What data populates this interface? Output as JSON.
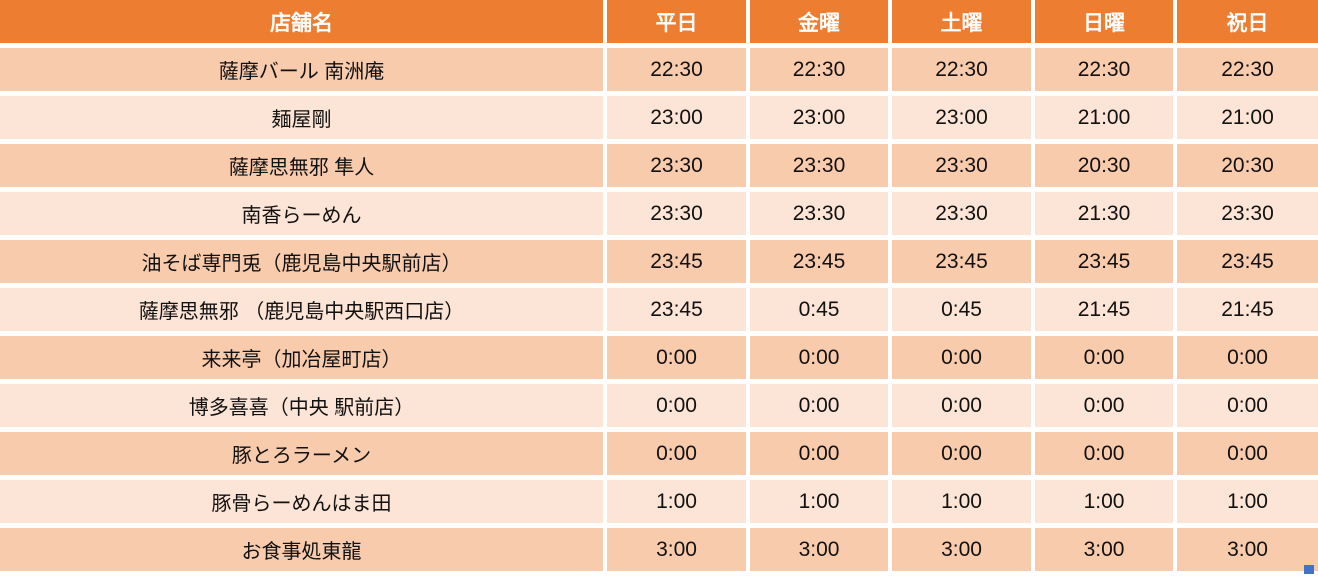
{
  "chart_data": {
    "type": "table",
    "title": "",
    "columns": [
      "店舗名",
      "平日",
      "金曜",
      "土曜",
      "日曜",
      "祝日"
    ],
    "rows": [
      {
        "name": "薩摩バール 南洲庵",
        "times": [
          "22:30",
          "22:30",
          "22:30",
          "22:30",
          "22:30"
        ]
      },
      {
        "name": "麺屋剛",
        "times": [
          "23:00",
          "23:00",
          "23:00",
          "21:00",
          "21:00"
        ]
      },
      {
        "name": "薩摩思無邪 隼人",
        "times": [
          "23:30",
          "23:30",
          "23:30",
          "20:30",
          "20:30"
        ]
      },
      {
        "name": "南香らーめん",
        "times": [
          "23:30",
          "23:30",
          "23:30",
          "21:30",
          "23:30"
        ]
      },
      {
        "name": "油そば専門兎（鹿児島中央駅前店）",
        "times": [
          "23:45",
          "23:45",
          "23:45",
          "23:45",
          "23:45"
        ]
      },
      {
        "name": "薩摩思無邪 （鹿児島中央駅西口店）",
        "times": [
          "23:45",
          "0:45",
          "0:45",
          "21:45",
          "21:45"
        ]
      },
      {
        "name": "来来亭（加冶屋町店）",
        "times": [
          "0:00",
          "0:00",
          "0:00",
          "0:00",
          "0:00"
        ]
      },
      {
        "name": "博多喜喜（中央 駅前店）",
        "times": [
          "0:00",
          "0:00",
          "0:00",
          "0:00",
          "0:00"
        ]
      },
      {
        "name": "豚とろラーメン",
        "times": [
          "0:00",
          "0:00",
          "0:00",
          "0:00",
          "0:00"
        ]
      },
      {
        "name": "豚骨らーめんはま田",
        "times": [
          "1:00",
          "1:00",
          "1:00",
          "1:00",
          "1:00"
        ]
      },
      {
        "name": "お食事処東龍",
        "times": [
          "3:00",
          "3:00",
          "3:00",
          "3:00",
          "3:00"
        ]
      }
    ]
  },
  "colors": {
    "header_bg": "#ED7D31",
    "header_text": "#FFFFFF",
    "row_band_dark": "#F8CBAD",
    "row_band_light": "#FCE4D6",
    "cell_text": "#111111",
    "grid": "#FFFFFF",
    "selection_handle": "#4472C4"
  }
}
